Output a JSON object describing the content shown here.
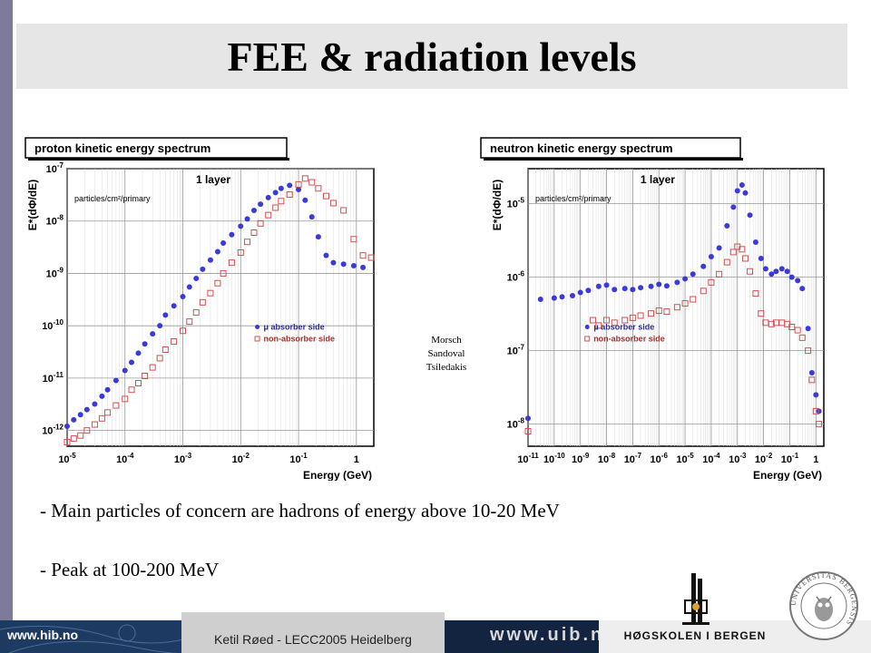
{
  "slide": {
    "title": "FEE & radiation levels",
    "credit": [
      "Morsch",
      "Sandoval",
      "Tsiledakis"
    ],
    "bullets": [
      "- Main particles of concern are hadrons of energy above 10-20 MeV",
      "- Peak at 100-200 MeV"
    ]
  },
  "footer": {
    "left_url": "www.hib.no",
    "author": "Ketil Røed - LECC2005 Heidelberg",
    "right_url": "www.uib.no",
    "college": "HØGSKOLEN I BERGEN",
    "seal_text": "UNIVERSITAS BERGENSIS"
  },
  "colors": {
    "absorber": "#3a3adc",
    "non_absorber": "#d05050",
    "footer_bg": "#12243f",
    "title_bg": "#e6e6e6"
  },
  "chart_data": [
    {
      "type": "scatter",
      "title": "proton kinetic energy spectrum",
      "annotation": "1 layer",
      "units_note": "particles/cm²/primary",
      "ylabel": "E*(dΦ/dE)",
      "xlabel": "Energy (GeV)",
      "x_scale": "log",
      "y_scale": "log",
      "xlim": [
        1e-05,
        2
      ],
      "ylim": [
        5e-13,
        1e-07
      ],
      "x_ticks": [
        "10-5",
        "10-4",
        "10-3",
        "10-2",
        "10-1",
        "1"
      ],
      "y_ticks": [
        "10-12",
        "10-11",
        "10-10",
        "10-9",
        "10-8",
        "10-7"
      ],
      "legend": "center-right",
      "series": [
        {
          "name": "μ absorber side",
          "marker": "dot",
          "x": [
            1e-05,
            1.3e-05,
            1.7e-05,
            2.2e-05,
            3e-05,
            4e-05,
            5e-05,
            7e-05,
            0.0001,
            0.00013,
            0.00017,
            0.00022,
            0.0003,
            0.0004,
            0.0005,
            0.0007,
            0.001,
            0.0013,
            0.0017,
            0.0022,
            0.003,
            0.004,
            0.005,
            0.007,
            0.01,
            0.013,
            0.017,
            0.022,
            0.03,
            0.04,
            0.05,
            0.07,
            0.1,
            0.13,
            0.17,
            0.22,
            0.3,
            0.4,
            0.6,
            0.9,
            1.3
          ],
          "y": [
            1.2e-12,
            1.6e-12,
            2e-12,
            2.5e-12,
            3.2e-12,
            4.5e-12,
            6e-12,
            9e-12,
            1.4e-11,
            2e-11,
            3e-11,
            4.5e-11,
            7e-11,
            1e-10,
            1.6e-10,
            2.4e-10,
            3.6e-10,
            5.5e-10,
            8e-10,
            1.2e-09,
            1.8e-09,
            2.6e-09,
            3.8e-09,
            5.5e-09,
            8e-09,
            1.1e-08,
            1.6e-08,
            2.1e-08,
            2.8e-08,
            3.5e-08,
            4.2e-08,
            4.8e-08,
            4e-08,
            2.5e-08,
            1.2e-08,
            5e-09,
            2.2e-09,
            1.6e-09,
            1.5e-09,
            1.4e-09,
            1.3e-09
          ]
        },
        {
          "name": "non-absorber side",
          "marker": "open-square",
          "x": [
            1e-05,
            1.3e-05,
            1.7e-05,
            2.2e-05,
            3e-05,
            4e-05,
            5e-05,
            7e-05,
            0.0001,
            0.00013,
            0.00017,
            0.00022,
            0.0003,
            0.0004,
            0.0005,
            0.0007,
            0.001,
            0.0013,
            0.0017,
            0.0022,
            0.003,
            0.004,
            0.005,
            0.007,
            0.01,
            0.013,
            0.017,
            0.022,
            0.03,
            0.04,
            0.05,
            0.07,
            0.1,
            0.13,
            0.17,
            0.22,
            0.3,
            0.4,
            0.6,
            0.9,
            1.3,
            1.8
          ],
          "y": [
            6e-13,
            7e-13,
            8e-13,
            1e-12,
            1.3e-12,
            1.7e-12,
            2.2e-12,
            3e-12,
            4e-12,
            6e-12,
            8e-12,
            1.1e-11,
            1.6e-11,
            2.4e-11,
            3.5e-11,
            5e-11,
            8e-11,
            1.2e-10,
            1.8e-10,
            2.8e-10,
            4.2e-10,
            6.5e-10,
            1e-09,
            1.6e-09,
            2.5e-09,
            4e-09,
            6e-09,
            9e-09,
            1.3e-08,
            1.8e-08,
            2.4e-08,
            3.2e-08,
            5e-08,
            6.5e-08,
            5.5e-08,
            4.2e-08,
            3e-08,
            2.2e-08,
            1.6e-08,
            4.5e-09,
            2.2e-09,
            2e-09
          ]
        }
      ]
    },
    {
      "type": "scatter",
      "title": "neutron kinetic energy spectrum",
      "annotation": "1 layer",
      "units_note": "particles/cm²/primary",
      "ylabel": "E*(dΦ/dE)",
      "xlabel": "Energy (GeV)",
      "x_scale": "log",
      "y_scale": "log",
      "xlim": [
        1e-11,
        2
      ],
      "ylim": [
        5e-09,
        3e-05
      ],
      "x_ticks": [
        "10-11",
        "10-10",
        "10-9",
        "10-8",
        "10-7",
        "10-6",
        "10-5",
        "10-4",
        "10-3",
        "10-2",
        "10-1",
        "1"
      ],
      "y_ticks": [
        "10-8",
        "10-7",
        "10-6",
        "10-5"
      ],
      "legend": "center-left",
      "series": [
        {
          "name": "μ absorber side",
          "marker": "dot",
          "x": [
            1e-11,
            3e-11,
            1e-10,
            2e-10,
            5e-10,
            1e-09,
            2e-09,
            5e-09,
            1e-08,
            2e-08,
            5e-08,
            1e-07,
            2e-07,
            5e-07,
            1e-06,
            2e-06,
            5e-06,
            1e-05,
            2e-05,
            5e-05,
            0.0001,
            0.0002,
            0.0004,
            0.0007,
            0.001,
            0.0015,
            0.002,
            0.003,
            0.005,
            0.008,
            0.012,
            0.02,
            0.03,
            0.05,
            0.08,
            0.12,
            0.2,
            0.3,
            0.5,
            0.7,
            1.0,
            1.3
          ],
          "y": [
            1.2e-08,
            5e-07,
            5.2e-07,
            5.4e-07,
            5.6e-07,
            6.2e-07,
            6.6e-07,
            7.5e-07,
            7.8e-07,
            6.8e-07,
            7e-07,
            6.8e-07,
            7.2e-07,
            7.5e-07,
            8e-07,
            7.6e-07,
            8.5e-07,
            9.5e-07,
            1.1e-06,
            1.4e-06,
            1.9e-06,
            2.5e-06,
            5e-06,
            9e-06,
            1.5e-05,
            1.8e-05,
            1.4e-05,
            7e-06,
            3e-06,
            1.8e-06,
            1.3e-06,
            1.1e-06,
            1.2e-06,
            1.3e-06,
            1.2e-06,
            1e-06,
            9e-07,
            7e-07,
            2e-07,
            5e-08,
            2.5e-08,
            1.5e-08
          ]
        },
        {
          "name": "non-absorber side",
          "marker": "open-square",
          "x": [
            1e-11,
            3e-09,
            5e-09,
            1e-08,
            2e-08,
            5e-08,
            1e-07,
            2e-07,
            5e-07,
            1e-06,
            2e-06,
            5e-06,
            1e-05,
            2e-05,
            5e-05,
            0.0001,
            0.0002,
            0.0004,
            0.0007,
            0.001,
            0.0015,
            0.002,
            0.003,
            0.005,
            0.008,
            0.012,
            0.02,
            0.03,
            0.05,
            0.08,
            0.12,
            0.2,
            0.3,
            0.5,
            0.7,
            1.0,
            1.3
          ],
          "y": [
            8e-09,
            2.6e-07,
            2.2e-07,
            2.6e-07,
            2.4e-07,
            2.6e-07,
            2.8e-07,
            3e-07,
            3.2e-07,
            3.5e-07,
            3.4e-07,
            3.9e-07,
            4.4e-07,
            5e-07,
            6.5e-07,
            8.5e-07,
            1.1e-06,
            1.6e-06,
            2.2e-06,
            2.6e-06,
            2.4e-06,
            1.8e-06,
            1.2e-06,
            6e-07,
            3.2e-07,
            2.4e-07,
            2.3e-07,
            2.4e-07,
            2.4e-07,
            2.3e-07,
            2.1e-07,
            1.9e-07,
            1.5e-07,
            1e-07,
            4e-08,
            1.5e-08,
            1e-08
          ]
        }
      ]
    }
  ]
}
